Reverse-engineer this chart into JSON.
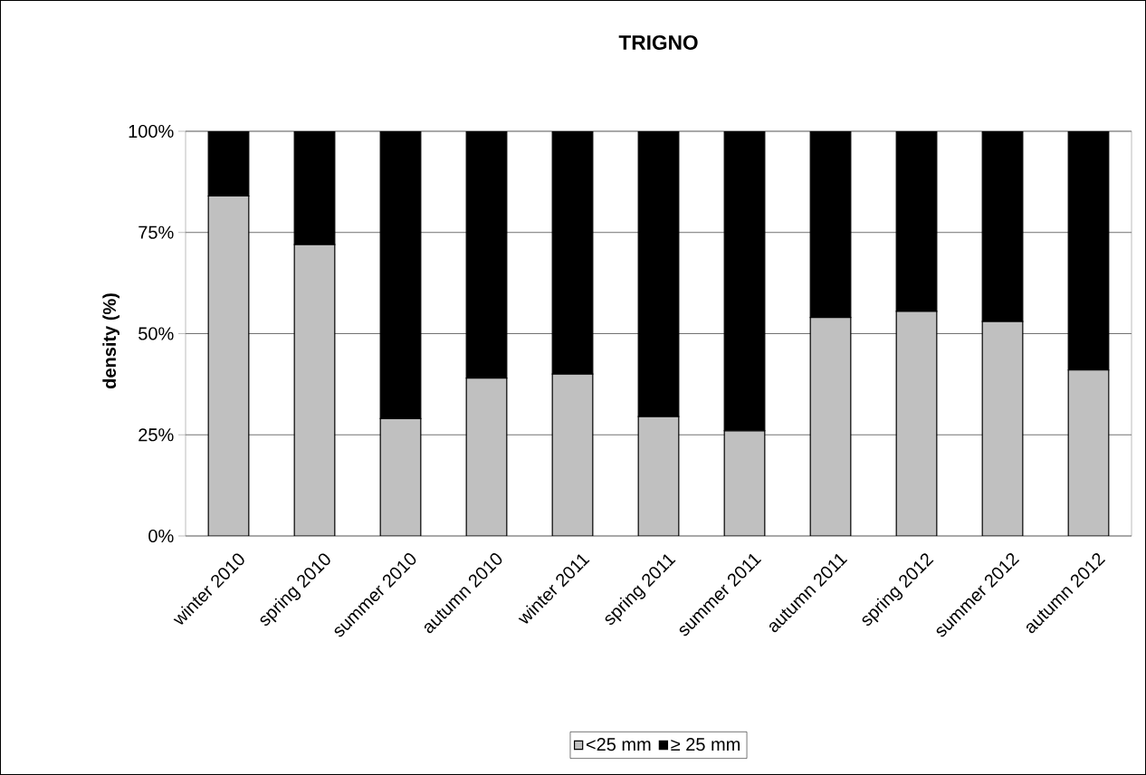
{
  "chart_data": {
    "type": "bar",
    "title": "TRIGNO",
    "ylabel": "density (%)",
    "categories": [
      "winter 2010",
      "spring 2010",
      "summer 2010",
      "autumn 2010",
      "winter 2011",
      "spring 2011",
      "summer 2011",
      "autumn 2011",
      "spring 2012",
      "summer 2012",
      "autumn 2012"
    ],
    "series": [
      {
        "name": "<25 mm",
        "color": "#c0c0c0",
        "values": [
          84,
          72,
          29,
          39,
          40,
          29.5,
          26,
          54,
          55.5,
          53,
          41
        ]
      },
      {
        "name": "≥ 25 mm",
        "color": "#000000",
        "values": [
          16,
          28,
          71,
          61,
          60,
          70.5,
          74,
          46,
          44.5,
          47,
          59
        ]
      }
    ],
    "stacked": true,
    "ylim": [
      0,
      100
    ],
    "yticks": [
      {
        "value": 0,
        "label": "0%"
      },
      {
        "value": 25,
        "label": "25%"
      },
      {
        "value": 50,
        "label": "50%"
      },
      {
        "value": 75,
        "label": "75%"
      },
      {
        "value": 100,
        "label": "100%"
      }
    ],
    "grid": "y",
    "legend": "bottom"
  }
}
